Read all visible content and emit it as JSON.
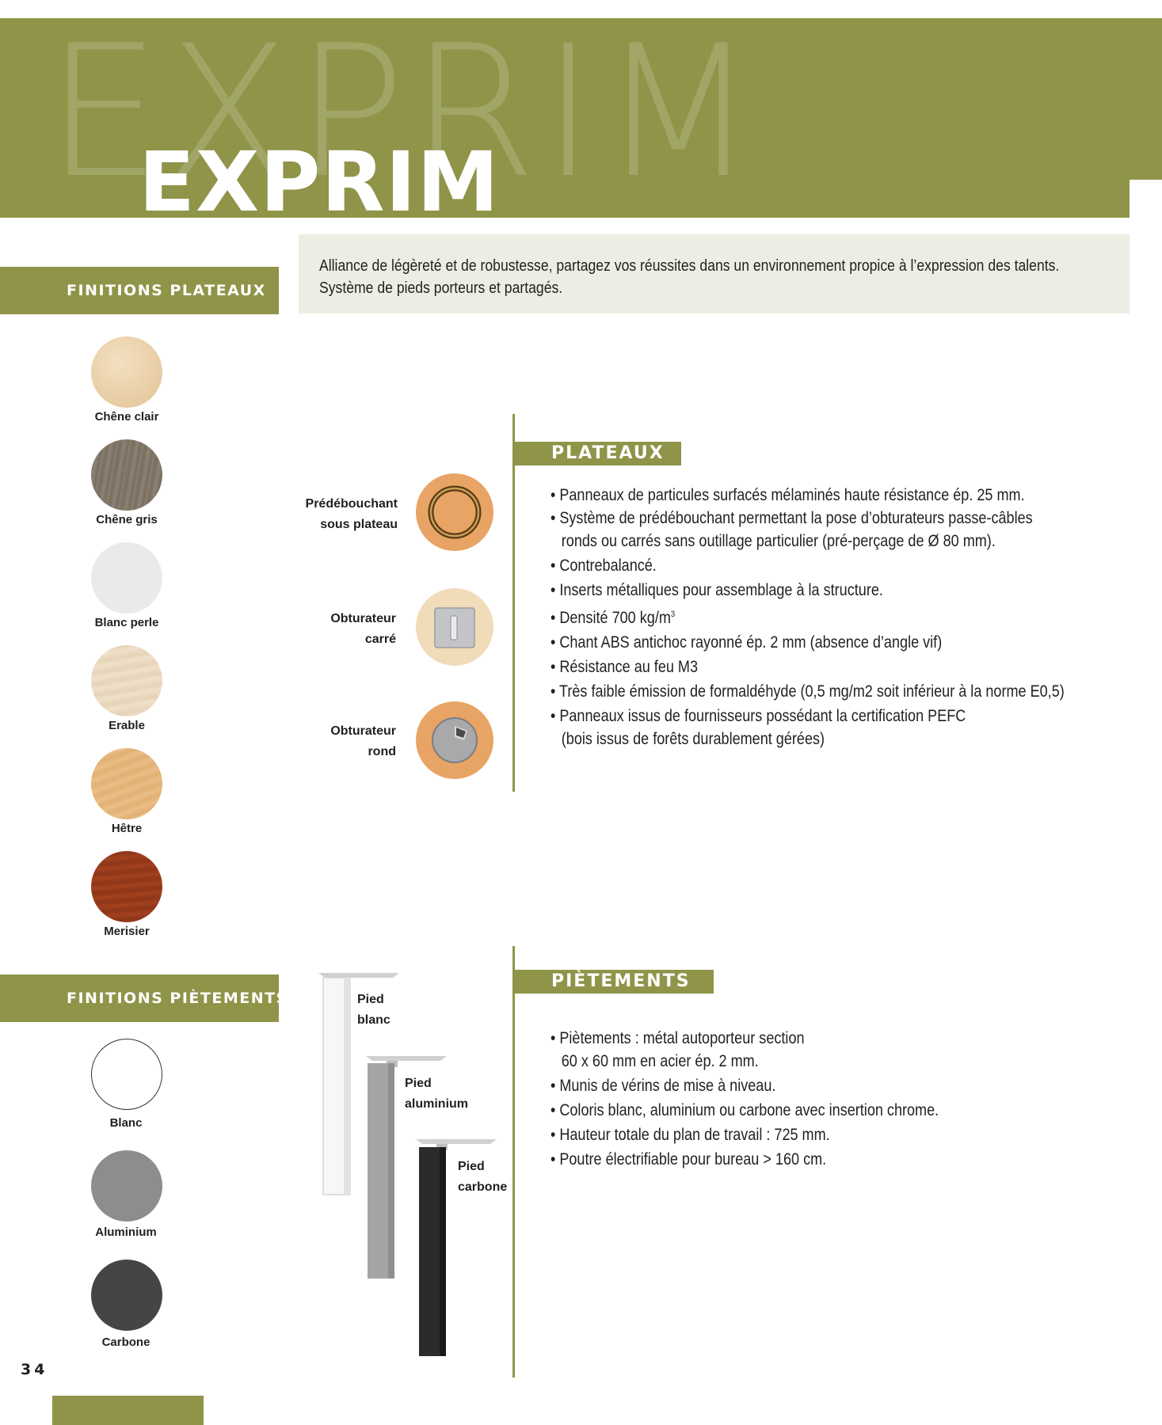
{
  "header": {
    "watermark": "EXPRIM",
    "title": "EXPRIM"
  },
  "intro": {
    "line1": "Alliance de légèreté et de robustesse, partagez vos réussites dans un environnement propice à l’expression des talents.",
    "line2": "Système de pieds porteurs et partagés."
  },
  "finitions_plateaux": {
    "label": "FINITIONS PLATEAUX",
    "swatches": [
      {
        "name": "Chêne clair",
        "color": "#e9cfa9"
      },
      {
        "name": "Chêne gris",
        "color": "#807566"
      },
      {
        "name": "Blanc perle",
        "color": "#eae9ec"
      },
      {
        "name": "Erable",
        "color": "#ecdcc4"
      },
      {
        "name": "Hêtre",
        "color": "#e7ba80"
      },
      {
        "name": "Merisier",
        "color": "#9a3a1e"
      }
    ]
  },
  "finitions_pietements": {
    "label": "FINITIONS PIÈTEMENTS",
    "swatches": [
      {
        "name": "Blanc",
        "color": "#ffffff"
      },
      {
        "name": "Aluminium",
        "color": "#8e8d8e"
      },
      {
        "name": "Carbone",
        "color": "#454546"
      }
    ]
  },
  "plateaux": {
    "heading": "PLATEAUX",
    "items": [
      {
        "label_line1": "Prédébouchant",
        "label_line2": "sous plateau",
        "icon": "ring-icon"
      },
      {
        "label_line1": "Obturateur",
        "label_line2": "carré",
        "icon": "square-cap-icon"
      },
      {
        "label_line1": "Obturateur",
        "label_line2": "rond",
        "icon": "round-cap-icon"
      }
    ],
    "bullets": [
      {
        "text": "• Panneaux de particules surfacés mélaminés haute résistance ép. 25 mm."
      },
      {
        "text": "• Système de prédébouchant permettant la pose d’obturateurs passe-câbles",
        "cont": "ronds ou carrés sans outillage particulier (pré-perçage de Ø 80 mm)."
      },
      {
        "text": "• Contrebalancé."
      },
      {
        "text": "• Inserts métalliques pour assemblage à la structure."
      },
      {
        "text": "• Densité 700 kg/m",
        "sup": "3"
      },
      {
        "text": "• Chant ABS antichoc rayonné ép. 2 mm (absence d’angle vif)"
      },
      {
        "text": "• Résistance au feu M3"
      },
      {
        "text": "• Très faible émission de formaldéhyde (0,5 mg/m2 soit inférieur à la norme E0,5)"
      },
      {
        "text": "• Panneaux issus de fournisseurs possédant la certification PEFC",
        "cont": "(bois issus de forêts durablement gérées)"
      }
    ]
  },
  "pietements": {
    "heading": "PIÈTEMENTS",
    "legs": [
      {
        "line1": "Pied",
        "line2": "blanc",
        "color": "#f7f7f7"
      },
      {
        "line1": "Pied",
        "line2": "aluminium",
        "color": "#a4a4a6"
      },
      {
        "line1": "Pied",
        "line2": "carbone",
        "color": "#2b2b2c"
      }
    ],
    "bullets": [
      {
        "text": "• Piètements : métal autoporteur section",
        "cont": "60 x 60 mm en acier ép. 2 mm."
      },
      {
        "text": "• Munis de vérins de mise à niveau."
      },
      {
        "text": "• Coloris blanc, aluminium ou carbone avec insertion chrome."
      },
      {
        "text": "• Hauteur totale du plan de travail : 725 mm."
      },
      {
        "text": "• Poutre électrifiable pour bureau > 160 cm."
      }
    ]
  },
  "footer": {
    "page_number": "34"
  },
  "colors": {
    "accent": "#8f9449",
    "intro_bg": "#eceee3"
  }
}
